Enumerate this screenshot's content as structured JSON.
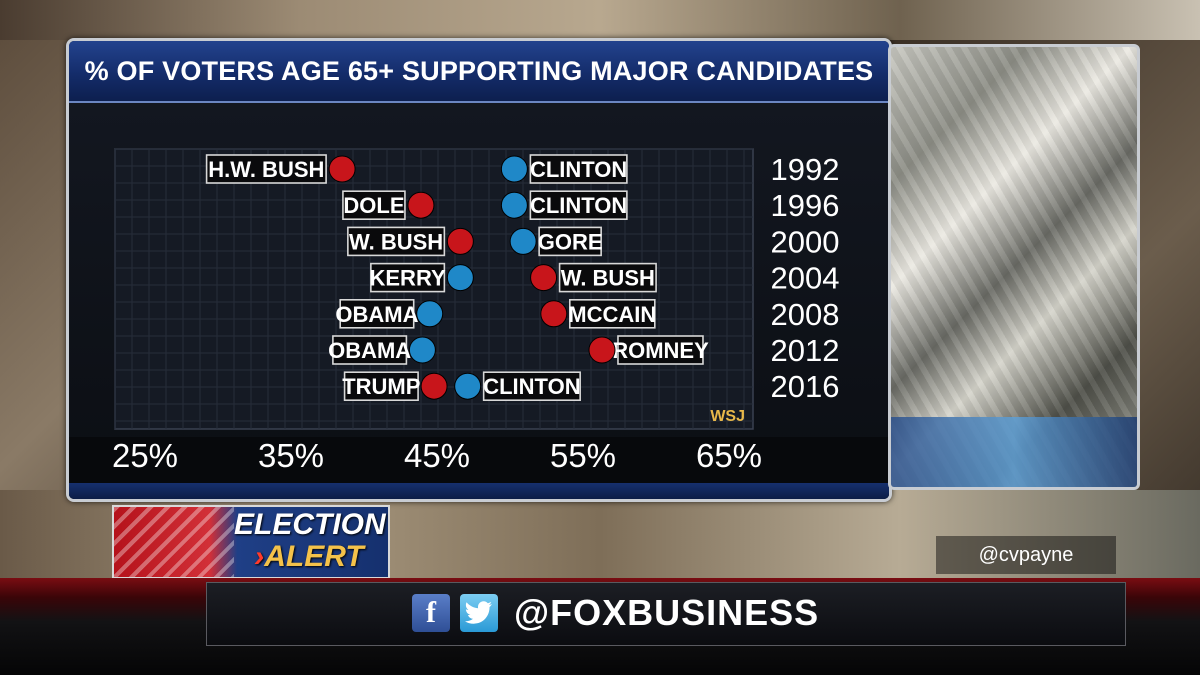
{
  "title": "% OF VOTERS AGE 65+ SUPPORTING MAJOR CANDIDATES",
  "source": "WSJ",
  "alert": {
    "line1": "ELECTION",
    "line2": "ALERT"
  },
  "handle": "@cvpayne",
  "social": {
    "handle": "@FOXBUSINESS",
    "facebook_icon": "facebook-icon",
    "twitter_icon": "twitter-icon"
  },
  "colors": {
    "republican": "#c8151b",
    "democrat": "#1f88c8",
    "source": "#e8b84a"
  },
  "chart_data": {
    "type": "scatter",
    "title": "% OF VOTERS AGE 65+ SUPPORTING MAJOR CANDIDATES",
    "xlabel": "",
    "ylabel": "",
    "xlim": [
      25,
      65
    ],
    "x_ticks": [
      "25%",
      "35%",
      "45%",
      "55%",
      "65%"
    ],
    "x_tick_values": [
      25,
      35,
      45,
      55,
      65
    ],
    "years": [
      "1992",
      "1996",
      "2000",
      "2004",
      "2008",
      "2012",
      "2016"
    ],
    "rows": [
      {
        "year": "1992",
        "republican": {
          "name": "H.W. BUSH",
          "value": 38.5
        },
        "democrat": {
          "name": "CLINTON",
          "value": 50.3
        }
      },
      {
        "year": "1996",
        "republican": {
          "name": "DOLE",
          "value": 43.9
        },
        "democrat": {
          "name": "CLINTON",
          "value": 50.3
        }
      },
      {
        "year": "2000",
        "republican": {
          "name": "W. BUSH",
          "value": 46.6
        },
        "democrat": {
          "name": "GORE",
          "value": 50.9
        }
      },
      {
        "year": "2004",
        "republican": {
          "name": "W. BUSH",
          "value": 52.3
        },
        "democrat": {
          "name": "KERRY",
          "value": 46.6
        }
      },
      {
        "year": "2008",
        "republican": {
          "name": "MCCAIN",
          "value": 53.0
        },
        "democrat": {
          "name": "OBAMA",
          "value": 44.5
        }
      },
      {
        "year": "2012",
        "republican": {
          "name": "ROMNEY",
          "value": 56.3
        },
        "democrat": {
          "name": "OBAMA",
          "value": 44.0
        }
      },
      {
        "year": "2016",
        "republican": {
          "name": "TRUMP",
          "value": 44.8
        },
        "democrat": {
          "name": "CLINTON",
          "value": 47.1
        }
      }
    ]
  }
}
